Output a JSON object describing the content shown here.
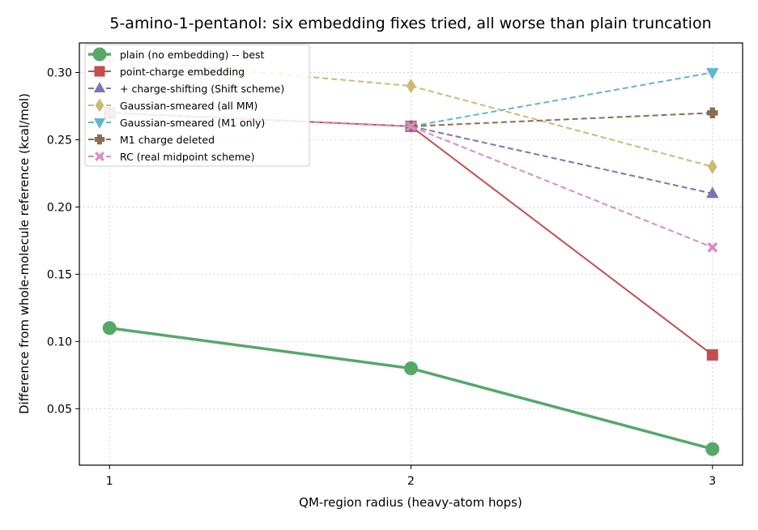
{
  "chart_data": {
    "type": "line",
    "title": "5-amino-1-pentanol: six embedding fixes tried, all worse than plain truncation",
    "xlabel": "QM-region radius (heavy-atom hops)",
    "ylabel": "Difference from whole-molecule reference (kcal/mol)",
    "x": [
      1,
      2,
      3
    ],
    "xlim": [
      0.9,
      3.1
    ],
    "ylim": [
      0.008,
      0.322
    ],
    "xticks": [
      1,
      2,
      3
    ],
    "yticks": [
      0.05,
      0.1,
      0.15,
      0.2,
      0.25,
      0.3
    ],
    "ytick_labels": [
      "0.05",
      "0.10",
      "0.15",
      "0.20",
      "0.25",
      "0.30"
    ],
    "xtick_labels": [
      "1",
      "2",
      "3"
    ],
    "grid": true,
    "legend_position": "top-left",
    "series": [
      {
        "name": "plain (no embedding) -- best",
        "values": [
          0.11,
          0.08,
          0.02
        ],
        "color": "#55a868",
        "marker": "circle",
        "linestyle": "solid",
        "emphasis": true
      },
      {
        "name": "point-charge embedding",
        "values": [
          0.27,
          0.26,
          0.09
        ],
        "color": "#c44e52",
        "marker": "square",
        "linestyle": "solid"
      },
      {
        "name": "+ charge-shifting (Shift scheme)",
        "values": [
          0.27,
          0.26,
          0.21
        ],
        "color": "#8172b2",
        "marker": "triangle-up",
        "linestyle": "dashed"
      },
      {
        "name": "Gaussian-smeared (all MM)",
        "values": [
          0.31,
          0.29,
          0.23
        ],
        "color": "#ccb974",
        "marker": "diamond",
        "linestyle": "dashed"
      },
      {
        "name": "Gaussian-smeared (M1 only)",
        "values": [
          0.27,
          0.26,
          0.3
        ],
        "color": "#64b5cd",
        "marker": "triangle-down",
        "linestyle": "dashed"
      },
      {
        "name": "M1 charge deleted",
        "values": [
          0.27,
          0.26,
          0.27
        ],
        "color": "#8c6d51",
        "marker": "plus",
        "linestyle": "dashed"
      },
      {
        "name": "RC (real midpoint scheme)",
        "values": [
          0.27,
          0.26,
          0.17
        ],
        "color": "#da8bc3",
        "marker": "x",
        "linestyle": "dashed"
      }
    ]
  }
}
